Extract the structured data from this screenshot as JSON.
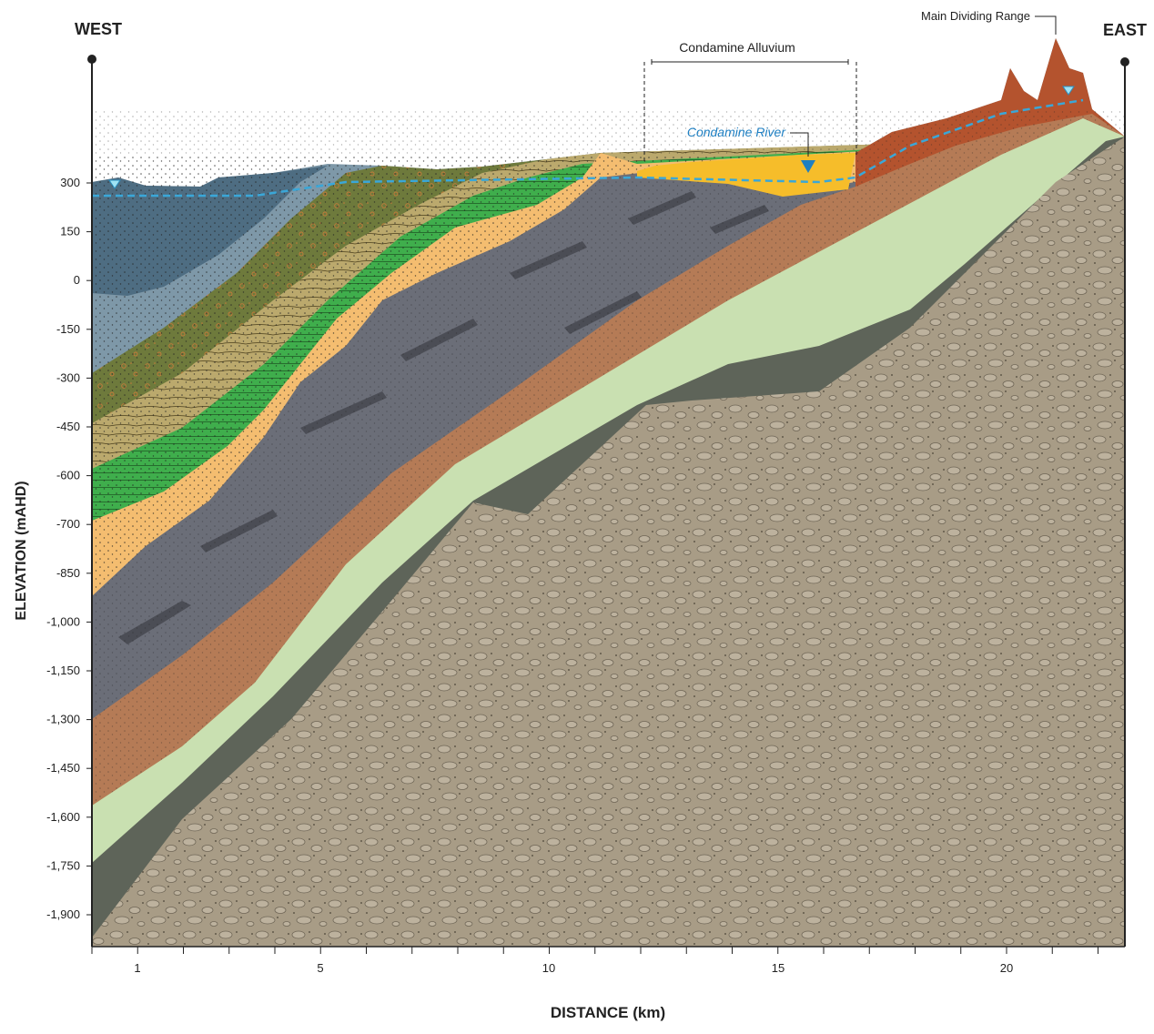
{
  "labels": {
    "west": "WEST",
    "east": "EAST",
    "main_range": "Main Dividing Range",
    "alluvium": "Condamine Alluvium",
    "river": "Condamine River"
  },
  "y_axis": {
    "title": "ELEVATION (mAHD)",
    "ticks": [
      "300",
      "150",
      "0",
      "-150",
      "-300",
      "-450",
      "-600",
      "-700",
      "-850",
      "-1,000",
      "-1,150",
      "-1,300",
      "-1,450",
      "-1,600",
      "-1,750",
      "-1,900"
    ]
  },
  "x_axis": {
    "title": "DISTANCE (km)",
    "ticks": [
      "1",
      "5",
      "10",
      "15",
      "20"
    ]
  }
}
